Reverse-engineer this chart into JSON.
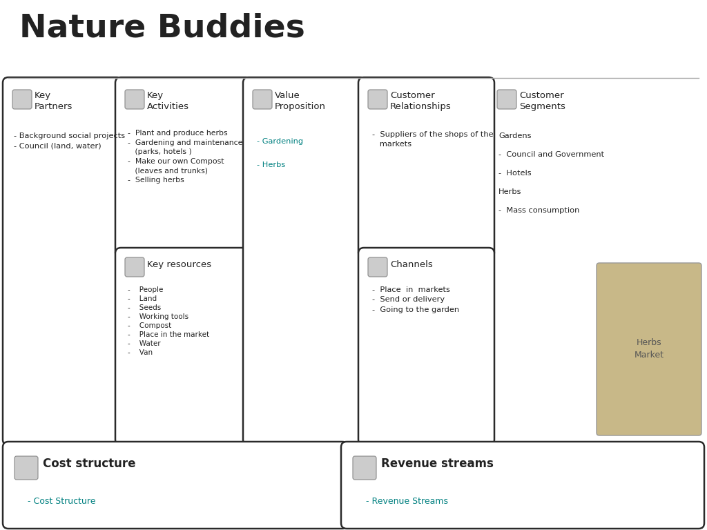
{
  "title": "Nature Buddies",
  "title_fontsize": 34,
  "bg_color": "#ffffff",
  "border_color": "#2a2a2a",
  "text_color": "#222222",
  "link_color": "#008080",
  "gray_line_color": "#aaaaaa",
  "key_partners": {
    "title": "Key\nPartners",
    "body": "- Background social projects\n- Council (land, water)"
  },
  "key_activities": {
    "title": "Key\nActivities",
    "body": "-  Plant and produce herbs\n-  Gardening and maintenance\n   (parks, hotels )\n-  Make our own Compost\n   (leaves and trunks)\n-  Selling herbs"
  },
  "key_resources": {
    "title": "Key resources",
    "body": "-    People\n-    Land\n-    Seeds\n-    Working tools\n-    Compost\n-    Place in the market\n-    Water\n-    Van"
  },
  "value_proposition": {
    "title": "Value\nProposition",
    "links": [
      "- Gardening",
      "- Herbs"
    ]
  },
  "customer_relationships": {
    "title": "Customer\nRelationships",
    "body": "-  Suppliers of the shops of the\n   markets"
  },
  "channels": {
    "title": "Channels",
    "body": "-  Place  in  markets\n-  Send or delivery\n-  Going to the garden"
  },
  "customer_segments": {
    "title": "Customer\nSegments",
    "items": [
      "Gardens",
      "-  Council and Government",
      "-  Hotels",
      "Herbs",
      "-  Mass consumption"
    ]
  },
  "cost_structure": {
    "title": "Cost structure",
    "link": "- Cost Structure"
  },
  "revenue_streams": {
    "title": "Revenue streams",
    "link": "- Revenue Streams"
  }
}
